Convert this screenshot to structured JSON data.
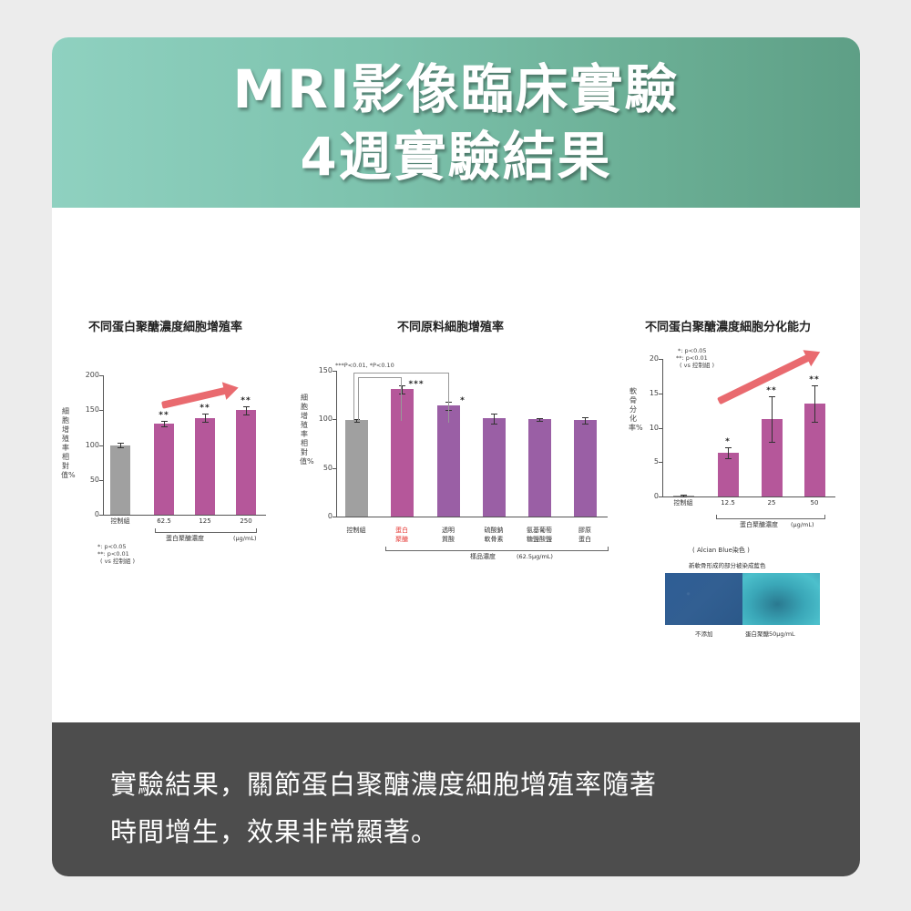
{
  "header": {
    "title_line1": "MRI影像臨床實驗",
    "title_line2": "4週實驗結果"
  },
  "footer": {
    "line1": "實驗結果，關節蛋白聚醣濃度細胞增殖率隨著",
    "line2": "時間增生，效果非常顯著。"
  },
  "colors": {
    "header_gradient_start": "#8fd1c0",
    "header_gradient_end": "#5e9f86",
    "footer_bg": "#4d4d4d",
    "control_bar": "#a0a0a0",
    "proteoglycan_bar": "#b5579a",
    "other_material_bar": "#9a5fa5",
    "trend_arrow": "#e96a6f",
    "highlight_label": "#e53935"
  },
  "chart_data": [
    {
      "type": "bar",
      "title": "不同蛋白聚醣濃度細胞增殖率",
      "ylabel": "細胞增殖率相對值%",
      "xlabel": "蛋白聚醣濃度 (μg/mL)",
      "categories": [
        "控制組",
        "62.5",
        "125",
        "250"
      ],
      "values": [
        100,
        131,
        139,
        150
      ],
      "errors": [
        3,
        4,
        6,
        6
      ],
      "significance": [
        "",
        "**",
        "**",
        "**"
      ],
      "yticks": [
        "0",
        "50",
        "100",
        "150",
        "200"
      ],
      "ylim": [
        0,
        200
      ],
      "notes": [
        "*: p<0.05",
        "**: p<0.01",
        "( vs 控制組 )"
      ],
      "annotation": "rising trend arrow",
      "xunit": "(μg/mL)",
      "group_label": "蛋白聚醣濃度"
    },
    {
      "type": "bar",
      "title": "不同原料細胞增殖率",
      "ylabel": "細胞增殖率相對值%",
      "xlabel": "樣品濃度 (62.5μg/mL)",
      "categories": [
        "控制組",
        "蛋白聚醣",
        "透明質酸",
        "硫酸軟骨素",
        "氨基葡萄糖鹽酸鹽",
        "膠原蛋白"
      ],
      "category_lines": [
        [
          "控制組"
        ],
        [
          "蛋白",
          "聚醣"
        ],
        [
          "透明",
          "質酸"
        ],
        [
          "硫酸鈉",
          "軟骨素"
        ],
        [
          "氨基葡萄",
          "糖鹽酸鹽"
        ],
        [
          "膠原",
          "蛋白"
        ]
      ],
      "values": [
        99,
        131,
        114,
        101,
        100,
        99
      ],
      "errors": [
        1.5,
        4,
        4,
        5,
        1.5,
        3
      ],
      "significance": [
        "",
        "***",
        "*",
        "",
        "",
        ""
      ],
      "yticks": [
        "0",
        "50",
        "100",
        "150"
      ],
      "ylim": [
        0,
        150
      ],
      "notes": [
        "***P<0.01, *P<0.10"
      ],
      "group_label": "樣品濃度",
      "xunit": "(62.5μg/mL)"
    },
    {
      "type": "bar",
      "title": "不同蛋白聚醣濃度細胞分化能力",
      "ylabel": "軟骨分化率%",
      "xlabel": "蛋白聚醣濃度 (μg/mL)",
      "categories": [
        "控制組",
        "12.5",
        "25",
        "50"
      ],
      "values": [
        0.1,
        6.3,
        11.3,
        13.5
      ],
      "errors": [
        0.1,
        0.8,
        3.3,
        2.6
      ],
      "significance": [
        "",
        "*",
        "**",
        "**"
      ],
      "yticks": [
        "0",
        "5",
        "10",
        "15",
        "20"
      ],
      "ylim": [
        0,
        20
      ],
      "notes": [
        "*: p<0.05",
        "**: p<0.01",
        "( vs 控制組 )"
      ],
      "annotation": "rising trend arrow",
      "group_label": "蛋白聚醣濃度",
      "xunit": "(μg/mL)"
    }
  ],
  "stain": {
    "caption1": "( Alcian Blue染色 )",
    "caption2": "新軟骨形成的部分被染成藍色",
    "label_left": "不添加",
    "label_right": "蛋白聚醣50μg/mL"
  }
}
